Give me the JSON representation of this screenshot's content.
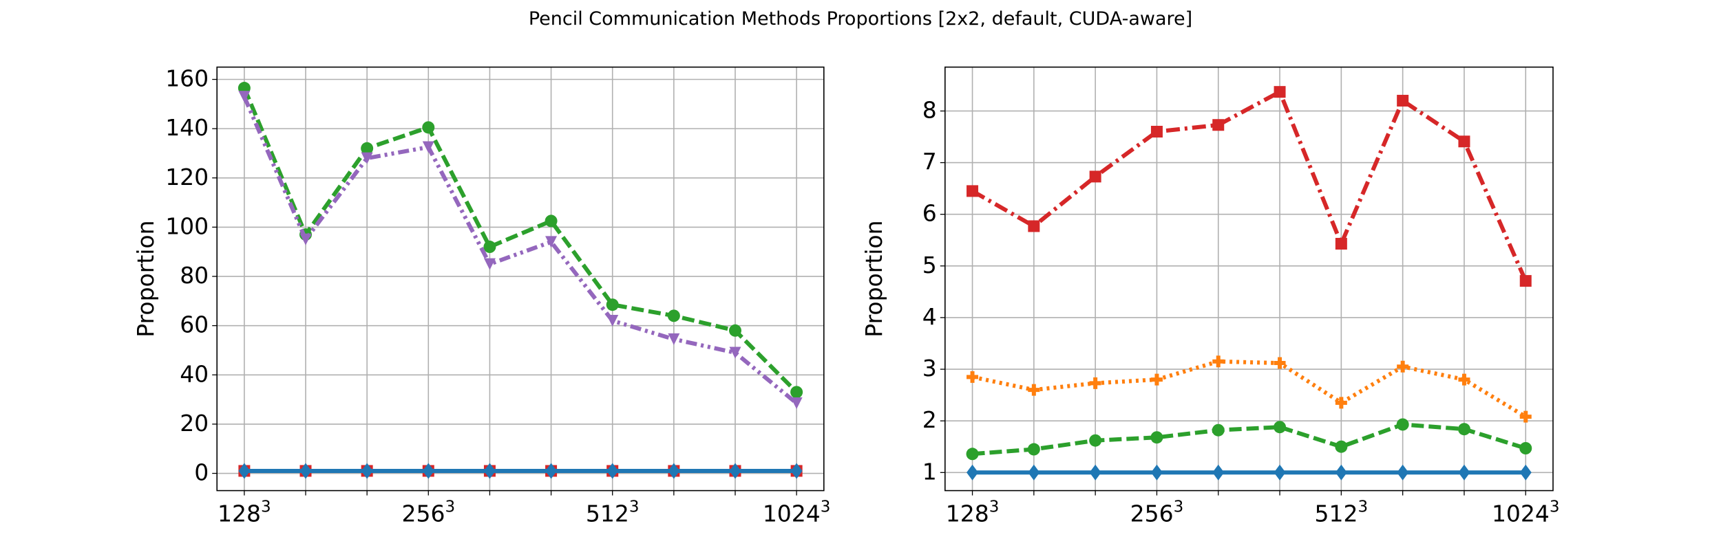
{
  "title": "Pencil Communication Methods Proportions [2x2, default, CUDA-aware]",
  "chart_data": [
    {
      "type": "line",
      "ylabel": "Proportion",
      "xlabel": "",
      "ylim": [
        -7,
        165
      ],
      "yticks": [
        0,
        20,
        40,
        60,
        80,
        100,
        120,
        140,
        160
      ],
      "x_tick_labels": [
        {
          "base": "128",
          "exp": "3",
          "index": 0
        },
        {
          "base": "256",
          "exp": "3",
          "index": 3
        },
        {
          "base": "512",
          "exp": "3",
          "index": 6
        },
        {
          "base": "1024",
          "exp": "3",
          "index": 9
        }
      ],
      "x_count": 10,
      "grid": true,
      "series": [
        {
          "color": "#d62728",
          "dash": "dashdot",
          "marker": "square",
          "values": [
            1,
            1,
            1,
            1,
            1,
            1,
            1,
            1,
            1,
            1
          ]
        },
        {
          "color": "#1f77b4",
          "dash": "solid",
          "marker": "diamond",
          "values": [
            1,
            1,
            1,
            1,
            1,
            1,
            1,
            1,
            1,
            1
          ]
        },
        {
          "color": "#2ca02c",
          "dash": "dashed",
          "marker": "circle",
          "values": [
            156.5,
            97,
            132,
            140.5,
            92,
            102.5,
            68.5,
            64,
            58,
            33
          ]
        },
        {
          "color": "#9467bd",
          "dash": "dashdotdot",
          "marker": "tri",
          "values": [
            153,
            95,
            128,
            132.5,
            85,
            94,
            62,
            54.5,
            49,
            28.5
          ]
        }
      ]
    },
    {
      "type": "line",
      "ylabel": "Proportion",
      "xlabel": "",
      "ylim": [
        0.65,
        8.85
      ],
      "yticks": [
        1,
        2,
        3,
        4,
        5,
        6,
        7,
        8
      ],
      "x_tick_labels": [
        {
          "base": "128",
          "exp": "3",
          "index": 0
        },
        {
          "base": "256",
          "exp": "3",
          "index": 3
        },
        {
          "base": "512",
          "exp": "3",
          "index": 6
        },
        {
          "base": "1024",
          "exp": "3",
          "index": 9
        }
      ],
      "x_count": 10,
      "grid": true,
      "series": [
        {
          "color": "#d62728",
          "dash": "dashdot",
          "marker": "square",
          "values": [
            6.45,
            5.77,
            6.73,
            7.6,
            7.73,
            8.37,
            5.43,
            8.2,
            7.41,
            4.71
          ]
        },
        {
          "color": "#ff7f0e",
          "dash": "dotted",
          "marker": "plus",
          "values": [
            2.85,
            2.6,
            2.73,
            2.8,
            3.15,
            3.12,
            2.35,
            3.05,
            2.8,
            2.08
          ]
        },
        {
          "color": "#2ca02c",
          "dash": "dashed",
          "marker": "circle",
          "values": [
            1.36,
            1.45,
            1.62,
            1.68,
            1.82,
            1.88,
            1.5,
            1.93,
            1.84,
            1.47
          ]
        },
        {
          "color": "#1f77b4",
          "dash": "solid",
          "marker": "diamond",
          "values": [
            1,
            1,
            1,
            1,
            1,
            1,
            1,
            1,
            1,
            1
          ]
        }
      ]
    }
  ]
}
